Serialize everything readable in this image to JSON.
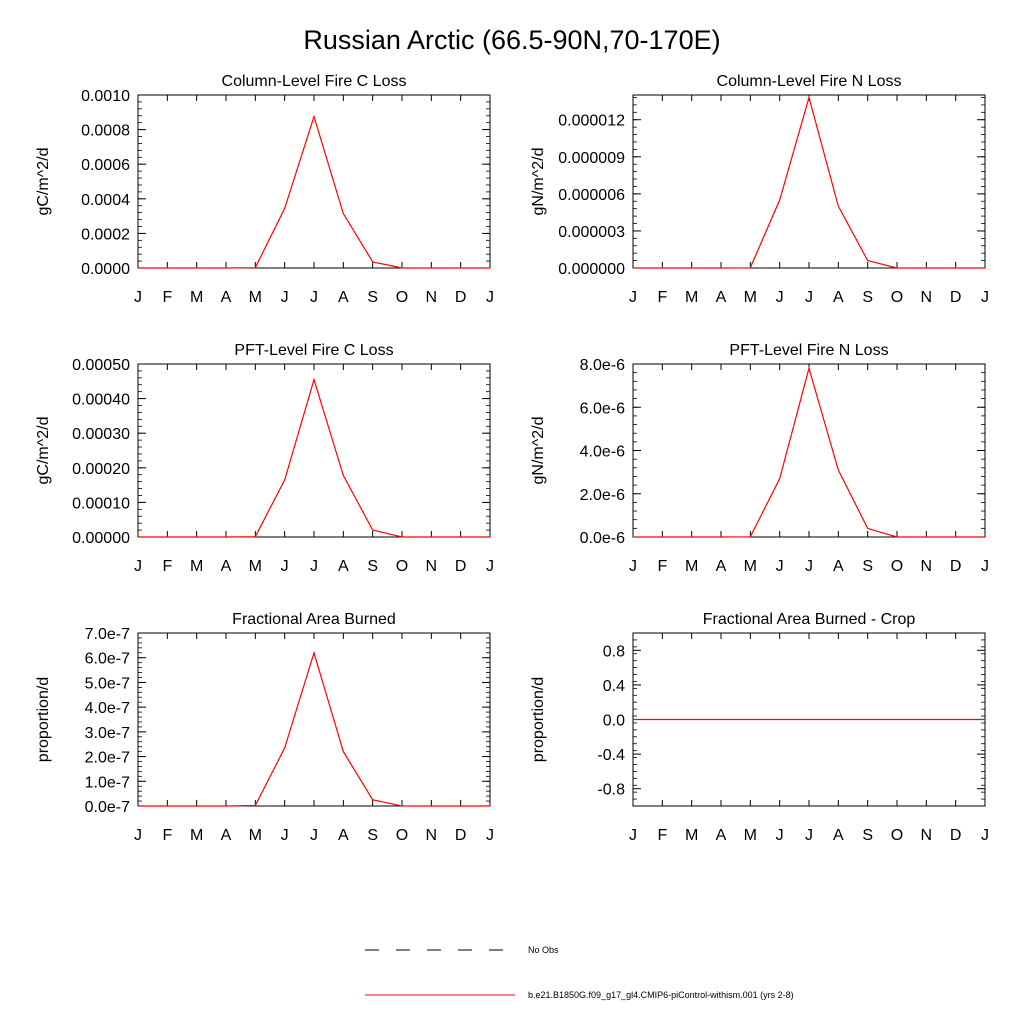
{
  "figure": {
    "title": "Russian Arctic (66.5-90N,70-170E)"
  },
  "colors": {
    "model_line": "#ff0000",
    "obs_line": "#000000",
    "axis": "#000000"
  },
  "chart_data": [
    {
      "type": "line",
      "title": "Column-Level Fire C Loss",
      "ylabel": "gC/m^2/d",
      "xlabel": "",
      "categories": [
        "J",
        "F",
        "M",
        "A",
        "M",
        "J",
        "J",
        "A",
        "S",
        "O",
        "N",
        "D",
        "J"
      ],
      "ylim": [
        0,
        0.001
      ],
      "yticks": [
        0,
        0.0002,
        0.0004,
        0.0006,
        0.0008,
        0.001
      ],
      "ytick_labels": [
        "0.0000",
        "0.0002",
        "0.0004",
        "0.0006",
        "0.0008",
        "0.0010"
      ],
      "series": [
        {
          "name": "b.e21.B1850G.f09_g17_gl4.CMIP6-piControl-withism.001 (yrs 2-8)",
          "values": [
            0,
            0,
            0,
            0,
            2e-06,
            0.000345,
            0.000875,
            0.000315,
            3.5e-05,
            0,
            0,
            0,
            0
          ]
        }
      ]
    },
    {
      "type": "line",
      "title": "Column-Level Fire N Loss",
      "ylabel": "gN/m^2/d",
      "xlabel": "",
      "categories": [
        "J",
        "F",
        "M",
        "A",
        "M",
        "J",
        "J",
        "A",
        "S",
        "O",
        "N",
        "D",
        "J"
      ],
      "ylim": [
        0,
        1.4e-05
      ],
      "yticks": [
        0,
        3e-06,
        6e-06,
        9e-06,
        1.2e-05
      ],
      "ytick_labels": [
        "0.000000",
        "0.000003",
        "0.000006",
        "0.000009",
        "0.000012"
      ],
      "series": [
        {
          "name": "b.e21.B1850G.f09_g17_gl4.CMIP6-piControl-withism.001 (yrs 2-8)",
          "values": [
            0,
            0,
            0,
            0,
            2e-08,
            5.5e-06,
            1.38e-05,
            5e-06,
            6e-07,
            0,
            0,
            0,
            0
          ]
        }
      ]
    },
    {
      "type": "line",
      "title": "PFT-Level Fire C Loss",
      "ylabel": "gC/m^2/d",
      "xlabel": "",
      "categories": [
        "J",
        "F",
        "M",
        "A",
        "M",
        "J",
        "J",
        "A",
        "S",
        "O",
        "N",
        "D",
        "J"
      ],
      "ylim": [
        0,
        0.0005
      ],
      "yticks": [
        0,
        0.0001,
        0.0002,
        0.0003,
        0.0004,
        0.0005
      ],
      "ytick_labels": [
        "0.00000",
        "0.00010",
        "0.00020",
        "0.00030",
        "0.00040",
        "0.00050"
      ],
      "series": [
        {
          "name": "b.e21.B1850G.f09_g17_gl4.CMIP6-piControl-withism.001 (yrs 2-8)",
          "values": [
            0,
            0,
            0,
            0,
            1e-06,
            0.000165,
            0.000455,
            0.000178,
            2e-05,
            0,
            0,
            0,
            0
          ]
        }
      ]
    },
    {
      "type": "line",
      "title": "PFT-Level Fire N Loss",
      "ylabel": "gN/m^2/d",
      "xlabel": "",
      "categories": [
        "J",
        "F",
        "M",
        "A",
        "M",
        "J",
        "J",
        "A",
        "S",
        "O",
        "N",
        "D",
        "J"
      ],
      "ylim": [
        0,
        8e-06
      ],
      "yticks": [
        0,
        2e-06,
        4e-06,
        6e-06,
        8e-06
      ],
      "ytick_labels": [
        "0.0e-6",
        "2.0e-6",
        "4.0e-6",
        "6.0e-6",
        "8.0e-6"
      ],
      "series": [
        {
          "name": "b.e21.B1850G.f09_g17_gl4.CMIP6-piControl-withism.001 (yrs 2-8)",
          "values": [
            0,
            0,
            0,
            0,
            1e-08,
            2.7e-06,
            7.8e-06,
            3.1e-06,
            4e-07,
            0,
            0,
            0,
            0
          ]
        }
      ]
    },
    {
      "type": "line",
      "title": "Fractional Area Burned",
      "ylabel": "proportion/d",
      "xlabel": "",
      "categories": [
        "J",
        "F",
        "M",
        "A",
        "M",
        "J",
        "J",
        "A",
        "S",
        "O",
        "N",
        "D",
        "J"
      ],
      "ylim": [
        0,
        7e-07
      ],
      "yticks": [
        0,
        1e-07,
        2e-07,
        3e-07,
        4e-07,
        5e-07,
        6e-07,
        7e-07
      ],
      "ytick_labels": [
        "0.0e-7",
        "1.0e-7",
        "2.0e-7",
        "3.0e-7",
        "4.0e-7",
        "5.0e-7",
        "6.0e-7",
        "7.0e-7"
      ],
      "series": [
        {
          "name": "b.e21.B1850G.f09_g17_gl4.CMIP6-piControl-withism.001 (yrs 2-8)",
          "values": [
            0,
            0,
            0,
            0,
            2e-09,
            2.35e-07,
            6.2e-07,
            2.2e-07,
            2.5e-08,
            0,
            0,
            0,
            0
          ]
        }
      ]
    },
    {
      "type": "line",
      "title": "Fractional Area Burned - Crop",
      "ylabel": "proportion/d",
      "xlabel": "",
      "categories": [
        "J",
        "F",
        "M",
        "A",
        "M",
        "J",
        "J",
        "A",
        "S",
        "O",
        "N",
        "D",
        "J"
      ],
      "ylim": [
        -1,
        1
      ],
      "yticks": [
        -0.8,
        -0.4,
        0,
        0.4,
        0.8
      ],
      "ytick_labels": [
        "-0.8",
        "-0.4",
        "0.0",
        "0.4",
        "0.8"
      ],
      "series": [
        {
          "name": "b.e21.B1850G.f09_g17_gl4.CMIP6-piControl-withism.001 (yrs 2-8)",
          "values": [
            0,
            0,
            0,
            0,
            0,
            0,
            0,
            0,
            0,
            0,
            0,
            0,
            0
          ]
        }
      ]
    }
  ],
  "legend": {
    "placement": "bottom-center",
    "entries": [
      {
        "label": "No Obs",
        "style": "dashed",
        "color": "#000000"
      },
      {
        "label": "b.e21.B1850G.f09_g17_gl4.CMIP6-piControl-withism.001 (yrs 2-8)",
        "style": "solid",
        "color": "#ff0000"
      }
    ]
  }
}
